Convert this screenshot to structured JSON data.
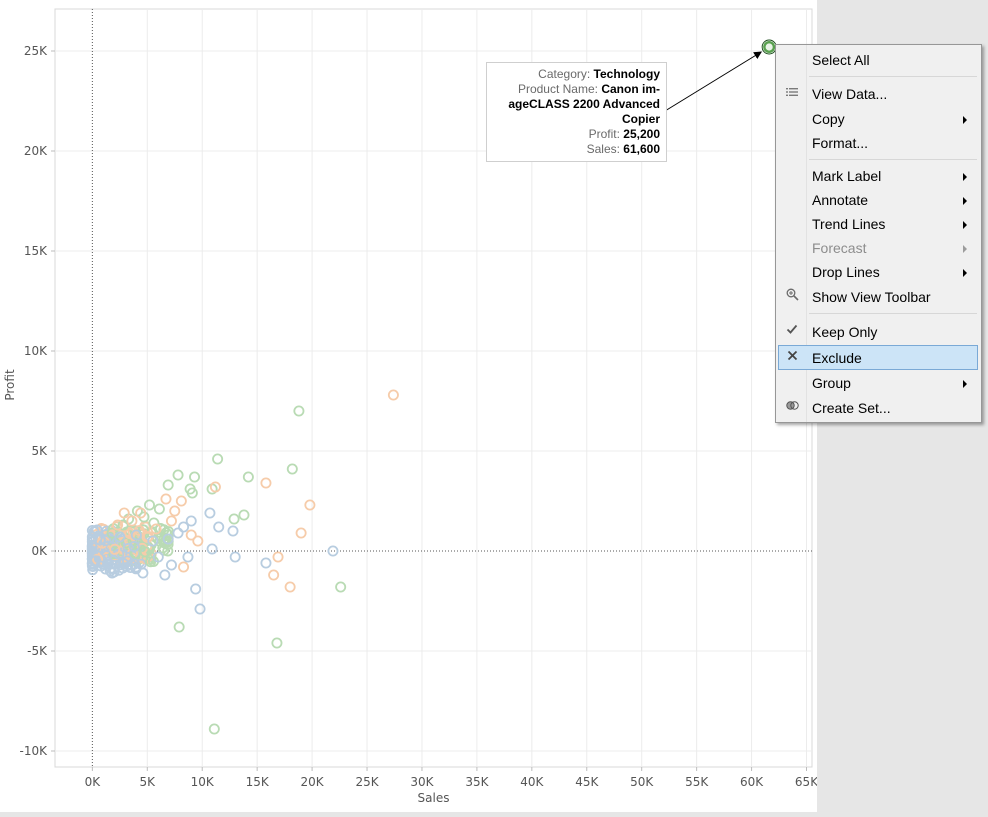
{
  "chart_data": {
    "type": "scatter",
    "title": "",
    "xlabel": "Sales",
    "ylabel": "Profit",
    "xlim": [
      -3400,
      65500
    ],
    "ylim": [
      -10800,
      27100
    ],
    "x_ticks": [
      0,
      5000,
      10000,
      15000,
      20000,
      25000,
      30000,
      35000,
      40000,
      45000,
      50000,
      55000,
      60000,
      65000
    ],
    "x_tick_labels": [
      "0K",
      "5K",
      "10K",
      "15K",
      "20K",
      "25K",
      "30K",
      "35K",
      "40K",
      "45K",
      "50K",
      "55K",
      "60K",
      "65K"
    ],
    "y_ticks": [
      -10000,
      -5000,
      0,
      5000,
      10000,
      15000,
      20000,
      25000
    ],
    "y_tick_labels": [
      "-10K",
      "-5K",
      "0K",
      "5K",
      "10K",
      "15K",
      "20K",
      "25K"
    ],
    "grid": true,
    "colors": {
      "Technology": "#59a14f",
      "Office Supplies": "#f28e2b",
      "Furniture": "#4e79a7"
    },
    "series": [
      {
        "category": "Technology",
        "points": [
          [
            61600,
            25200
          ]
        ],
        "highlighted": true
      },
      {
        "category": "Technology",
        "points": [
          [
            18800,
            7000
          ],
          [
            11400,
            4600
          ],
          [
            7800,
            3800
          ],
          [
            9300,
            3700
          ],
          [
            14200,
            3700
          ],
          [
            18200,
            4100
          ],
          [
            8900,
            3100
          ],
          [
            6900,
            3300
          ],
          [
            5200,
            2300
          ],
          [
            6100,
            2100
          ],
          [
            4100,
            2000
          ],
          [
            12900,
            1600
          ],
          [
            13800,
            1800
          ],
          [
            22600,
            -1800
          ],
          [
            7900,
            -3800
          ],
          [
            16800,
            -4600
          ],
          [
            11100,
            -8900
          ],
          [
            4700,
            1700
          ],
          [
            2800,
            1300
          ],
          [
            9100,
            2900
          ],
          [
            10900,
            3100
          ],
          [
            3300,
            1600
          ],
          [
            5600,
            1400
          ],
          [
            1800,
            900
          ]
        ]
      },
      {
        "category": "Office Supplies",
        "points": [
          [
            27400,
            7800
          ],
          [
            15800,
            3400
          ],
          [
            19800,
            2300
          ],
          [
            11200,
            3200
          ],
          [
            8100,
            2500
          ],
          [
            6700,
            2600
          ],
          [
            7500,
            2000
          ],
          [
            9000,
            800
          ],
          [
            16900,
            -300
          ],
          [
            16500,
            -1200
          ],
          [
            18000,
            -1800
          ],
          [
            19000,
            900
          ],
          [
            9600,
            500
          ],
          [
            8300,
            -800
          ],
          [
            4400,
            1900
          ],
          [
            3600,
            1500
          ],
          [
            2300,
            1300
          ],
          [
            5800,
            1100
          ],
          [
            7200,
            1500
          ],
          [
            2900,
            1900
          ]
        ]
      },
      {
        "category": "Furniture",
        "points": [
          [
            21900,
            0
          ],
          [
            15800,
            -600
          ],
          [
            13000,
            -300
          ],
          [
            10900,
            100
          ],
          [
            9800,
            -2900
          ],
          [
            9400,
            -1900
          ],
          [
            10700,
            1900
          ],
          [
            11500,
            1200
          ],
          [
            12800,
            1000
          ],
          [
            9000,
            1500
          ],
          [
            8300,
            1200
          ],
          [
            7800,
            900
          ],
          [
            7200,
            -700
          ],
          [
            6600,
            -1200
          ],
          [
            6000,
            -300
          ],
          [
            5500,
            500
          ],
          [
            4600,
            -1100
          ],
          [
            1800,
            -1100
          ],
          [
            1200,
            -900
          ],
          [
            3200,
            -500
          ],
          [
            4000,
            800
          ],
          [
            2500,
            700
          ],
          [
            6900,
            600
          ],
          [
            8700,
            -300
          ]
        ]
      }
    ],
    "cluster_centers": [
      [
        1500,
        200
      ],
      [
        3000,
        400
      ],
      [
        4500,
        300
      ],
      [
        2200,
        -200
      ]
    ]
  },
  "tooltip": {
    "category_key": "Category:",
    "category_val": "Technology",
    "product_key": "Product Name:",
    "product_val_line1": "Canon im-",
    "product_val_line2": "ageCLASS 2200 Advanced",
    "product_val_line3": "Copier",
    "profit_key": "Profit:",
    "profit_val": "25,200",
    "sales_key": "Sales:",
    "sales_val": "61,600"
  },
  "context_menu": {
    "items": [
      {
        "label": "Select All"
      },
      {
        "label": "View Data...",
        "icon": "view-data-icon"
      },
      {
        "label": "Copy",
        "submenu": true
      },
      {
        "label": "Format..."
      },
      {
        "label": "Mark Label",
        "submenu": true
      },
      {
        "label": "Annotate",
        "submenu": true
      },
      {
        "label": "Trend Lines",
        "submenu": true
      },
      {
        "label": "Forecast",
        "submenu": true,
        "disabled": true
      },
      {
        "label": "Drop Lines",
        "submenu": true
      },
      {
        "label": "Show View Toolbar",
        "icon": "zoom-icon"
      },
      {
        "label": "Keep Only",
        "icon": "checkmark-icon"
      },
      {
        "label": "Exclude",
        "icon": "x-icon",
        "highlighted": true
      },
      {
        "label": "Group",
        "submenu": true
      },
      {
        "label": "Create Set...",
        "icon": "set-icon"
      }
    ]
  }
}
